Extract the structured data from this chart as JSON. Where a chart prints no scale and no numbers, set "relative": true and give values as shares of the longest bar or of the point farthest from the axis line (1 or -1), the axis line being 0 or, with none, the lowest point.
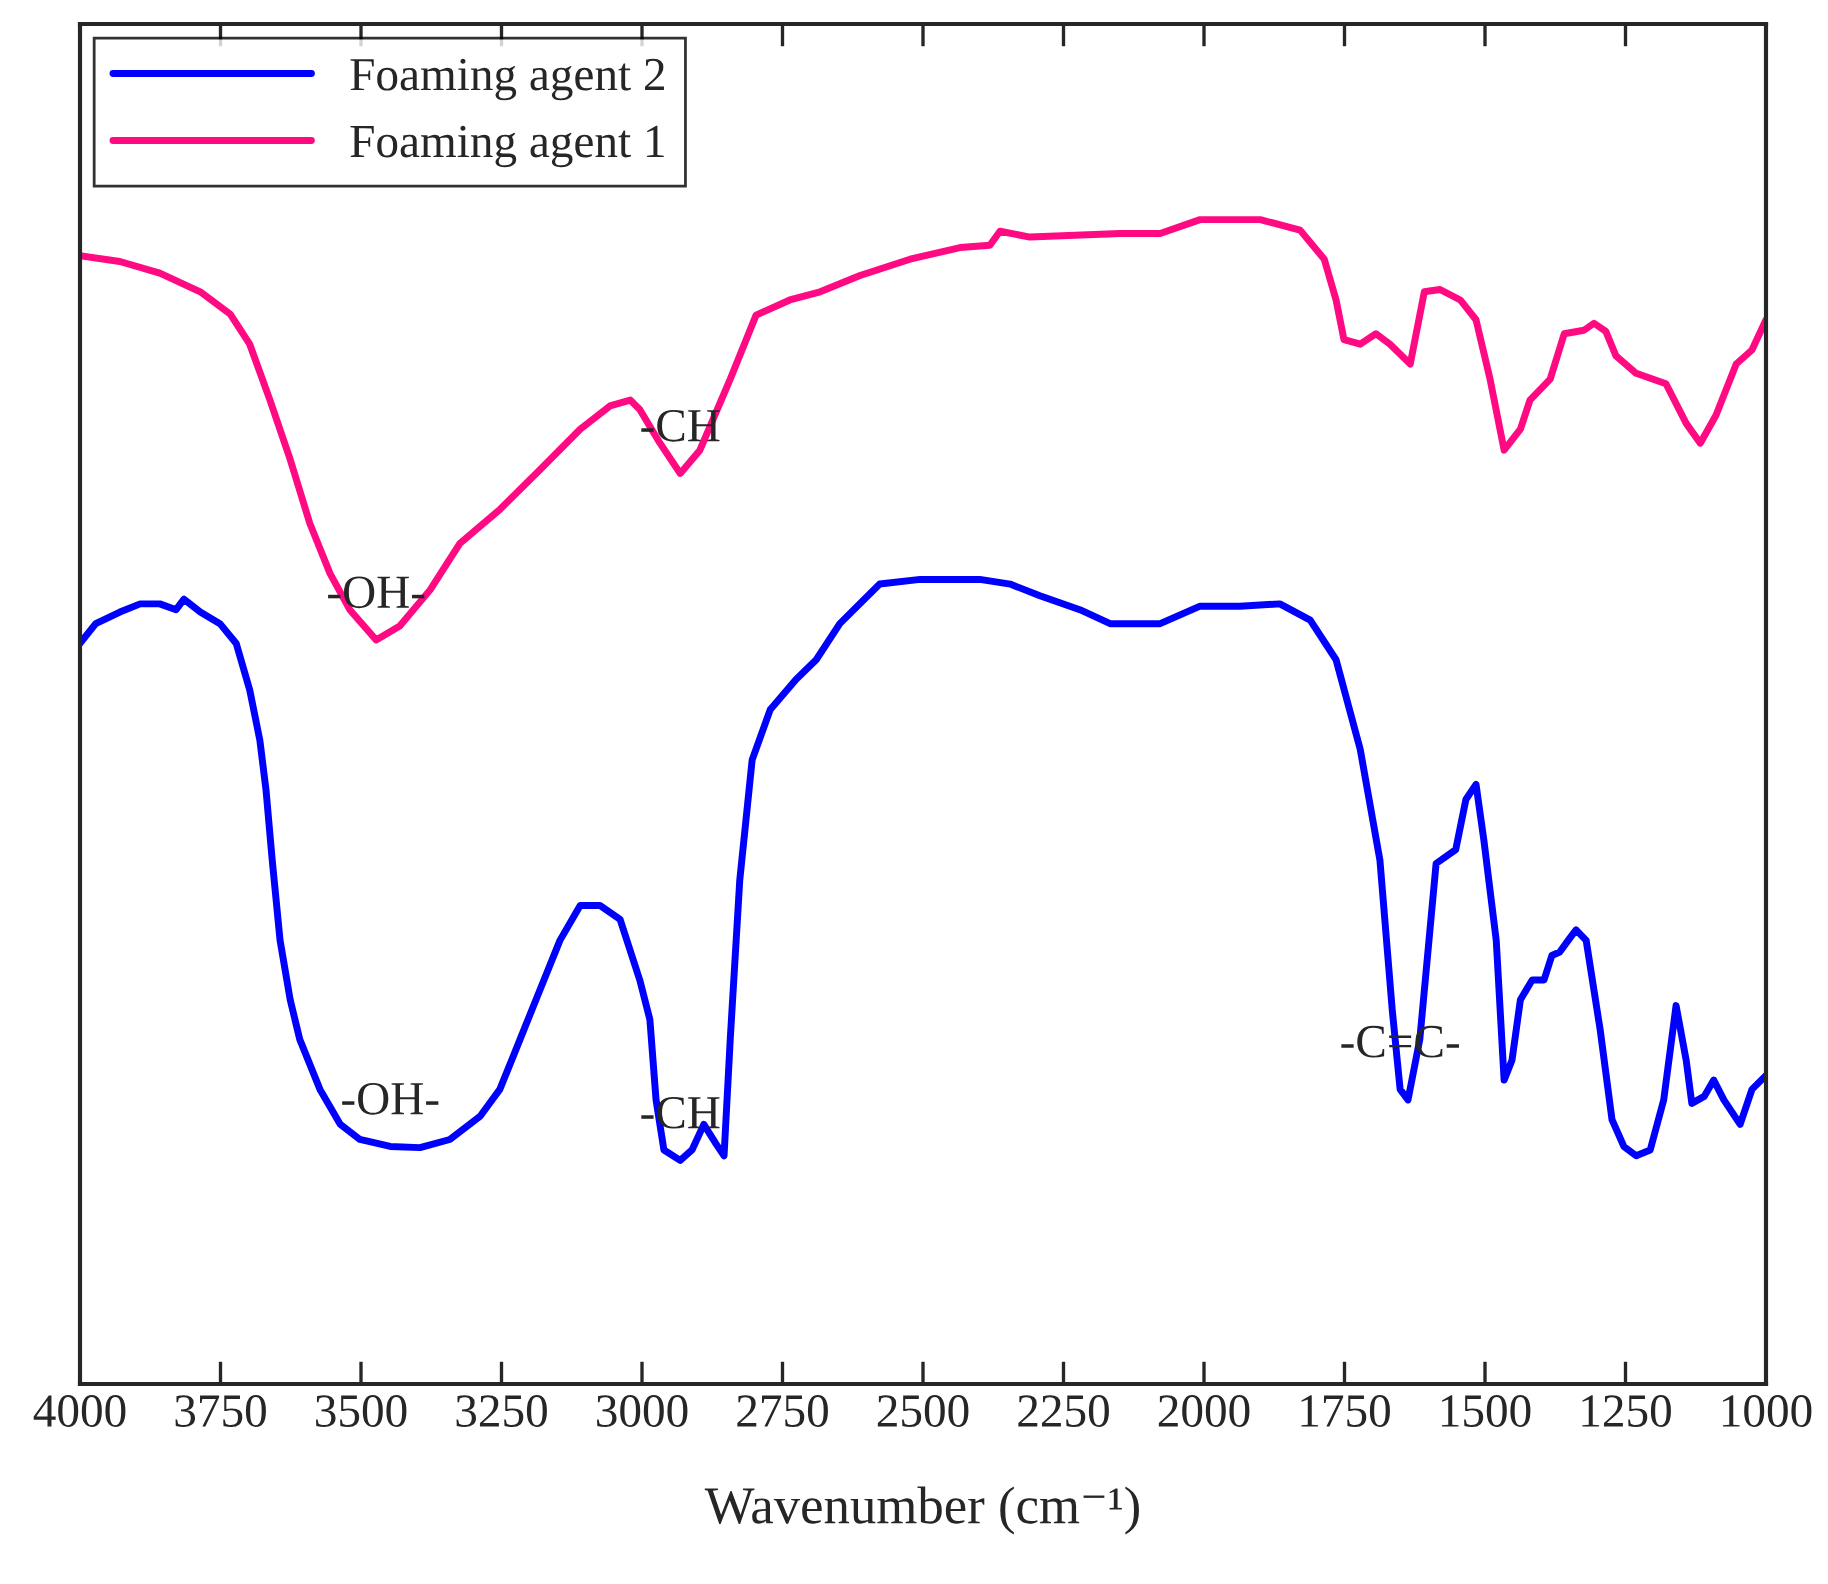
{
  "chart_data": {
    "type": "line",
    "xlabel": "Wavenumber (cm⁻¹)",
    "relative": true,
    "xlim": [
      4000,
      1000
    ],
    "xticks": [
      4000,
      3750,
      3500,
      3250,
      3000,
      2750,
      2500,
      2250,
      2000,
      1750,
      1500,
      1250,
      1000
    ],
    "legend": "top left",
    "line_style": "solid",
    "series": [
      {
        "name": "Foaming agent 2",
        "color": "#0000ff",
        "x": [
          4000,
          3972,
          3929,
          3893,
          3858,
          3829,
          3815,
          3786,
          3751,
          3722,
          3698,
          3680,
          3669,
          3658,
          3644,
          3626,
          3609,
          3573,
          3537,
          3502,
          3448,
          3395,
          3342,
          3288,
          3253,
          3217,
          3182,
          3146,
          3110,
          3075,
          3039,
          3004,
          2986,
          2975,
          2961,
          2932,
          2911,
          2890,
          2868,
          2854,
          2843,
          2826,
          2804,
          2772,
          2726,
          2690,
          2648,
          2577,
          2505,
          2399,
          2345,
          2292,
          2221,
          2167,
          2078,
          2007,
          1936,
          1865,
          1811,
          1765,
          1722,
          1687,
          1665,
          1651,
          1637,
          1616,
          1587,
          1552,
          1534,
          1516,
          1502,
          1480,
          1466,
          1452,
          1437,
          1416,
          1395,
          1381,
          1367,
          1352,
          1338,
          1320,
          1295,
          1274,
          1253,
          1231,
          1206,
          1182,
          1160,
          1142,
          1132,
          1110,
          1093,
          1075,
          1046,
          1025,
          1000
        ],
        "values": [
          0.636,
          0.653,
          0.663,
          0.67,
          0.67,
          0.665,
          0.674,
          0.663,
          0.653,
          0.636,
          0.596,
          0.553,
          0.51,
          0.45,
          0.381,
          0.33,
          0.296,
          0.253,
          0.223,
          0.21,
          0.204,
          0.203,
          0.21,
          0.23,
          0.253,
          0.296,
          0.338,
          0.381,
          0.411,
          0.411,
          0.399,
          0.347,
          0.313,
          0.244,
          0.201,
          0.192,
          0.201,
          0.223,
          0.206,
          0.196,
          0.296,
          0.433,
          0.536,
          0.579,
          0.605,
          0.622,
          0.653,
          0.687,
          0.691,
          0.691,
          0.687,
          0.677,
          0.665,
          0.653,
          0.653,
          0.668,
          0.668,
          0.67,
          0.656,
          0.622,
          0.545,
          0.45,
          0.321,
          0.253,
          0.244,
          0.296,
          0.447,
          0.459,
          0.502,
          0.515,
          0.467,
          0.381,
          0.261,
          0.278,
          0.33,
          0.347,
          0.347,
          0.368,
          0.371,
          0.381,
          0.39,
          0.381,
          0.304,
          0.227,
          0.204,
          0.196,
          0.201,
          0.244,
          0.325,
          0.278,
          0.241,
          0.247,
          0.261,
          0.244,
          0.223,
          0.253,
          0.265
        ]
      },
      {
        "name": "Foaming agent 1",
        "color": "#ff0a82",
        "x": [
          4000,
          3929,
          3858,
          3786,
          3733,
          3698,
          3662,
          3626,
          3591,
          3555,
          3520,
          3473,
          3431,
          3377,
          3324,
          3253,
          3182,
          3110,
          3057,
          3021,
          3004,
          2968,
          2932,
          2897,
          2843,
          2797,
          2737,
          2683,
          2612,
          2523,
          2434,
          2381,
          2363,
          2310,
          2149,
          2078,
          2007,
          1900,
          1829,
          1786,
          1765,
          1751,
          1722,
          1694,
          1669,
          1633,
          1608,
          1580,
          1544,
          1516,
          1491,
          1466,
          1437,
          1420,
          1384,
          1359,
          1324,
          1306,
          1285,
          1267,
          1231,
          1178,
          1142,
          1117,
          1089,
          1053,
          1025,
          1000
        ],
        "values": [
          0.969,
          0.964,
          0.954,
          0.938,
          0.919,
          0.893,
          0.845,
          0.794,
          0.739,
          0.696,
          0.665,
          0.639,
          0.651,
          0.682,
          0.722,
          0.751,
          0.785,
          0.82,
          0.84,
          0.845,
          0.837,
          0.808,
          0.782,
          0.802,
          0.863,
          0.918,
          0.931,
          0.938,
          0.952,
          0.966,
          0.976,
          0.978,
          0.99,
          0.985,
          0.988,
          0.988,
          1.0,
          1.0,
          0.991,
          0.966,
          0.931,
          0.897,
          0.893,
          0.902,
          0.893,
          0.876,
          0.938,
          0.94,
          0.931,
          0.914,
          0.863,
          0.802,
          0.82,
          0.845,
          0.863,
          0.902,
          0.905,
          0.911,
          0.904,
          0.883,
          0.868,
          0.859,
          0.825,
          0.808,
          0.832,
          0.876,
          0.888,
          0.914
        ]
      }
    ],
    "annotations": [
      {
        "text": "-OH-",
        "x": 3473,
        "y": 0.639
      },
      {
        "text": "-CH",
        "x": 2932,
        "y": 0.782
      },
      {
        "text": "-OH-",
        "x": 3448,
        "y": 0.204
      },
      {
        "text": "-CH",
        "x": 2932,
        "y": 0.192
      },
      {
        "text": "-C=C-",
        "x": 1651,
        "y": 0.253
      }
    ]
  }
}
